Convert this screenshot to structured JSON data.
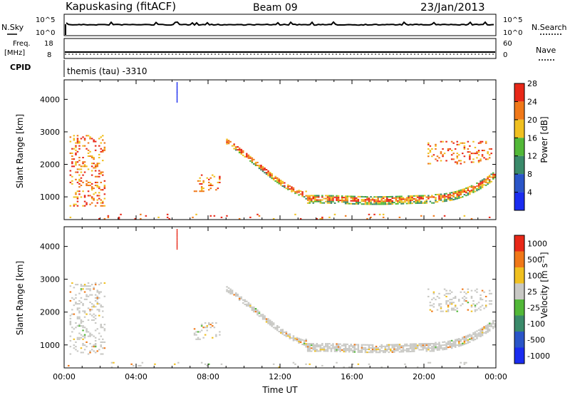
{
  "header": {
    "station": "Kapuskasing (fitACF)",
    "beam": "Beam 09",
    "date": "23/Jan/2013"
  },
  "top_panels": {
    "nsky_label": "N.Sky",
    "nsky_ticks": [
      "10^5",
      "10^0"
    ],
    "nsearch_label": "N.Search",
    "nsearch_ticks": [
      "10^5",
      "10^0"
    ],
    "freq_label": "Freq.",
    "freq_unit": "[MHz]",
    "freq_ticks": [
      "18",
      "8"
    ],
    "nave_label": "Nave",
    "nave_ticks": [
      "60",
      "0"
    ],
    "cpid_label": "CPID",
    "cpid_value": "themis (tau) -3310"
  },
  "chart_data": [
    {
      "type": "heatmap",
      "name": "power",
      "ylabel": "Slant Range [km]",
      "yticks": [
        "1000",
        "2000",
        "3000",
        "4000"
      ],
      "ylim": [
        300,
        4600
      ],
      "xlim": [
        0,
        24
      ],
      "colorbar_label": "Power [dB]",
      "colorbar_ticks": [
        "4",
        "8",
        "12",
        "16",
        "20",
        "24",
        "28"
      ],
      "colorbar_colors": [
        "#1a2cf0",
        "#2a55c8",
        "#3a8a6a",
        "#52b838",
        "#f0c020",
        "#f07818",
        "#e82818"
      ],
      "bands": [
        {
          "x0": 9.0,
          "x1": 13.4,
          "r0": 2700,
          "r1": 1050,
          "note": "descending arc"
        },
        {
          "x0": 13.4,
          "x1": 20.5,
          "r0": 900,
          "r1": 900
        },
        {
          "x0": 20.5,
          "x1": 24.0,
          "r0": 950,
          "r1": 1700
        }
      ]
    },
    {
      "type": "heatmap",
      "name": "velocity",
      "ylabel": "Slant Range [km]",
      "yticks": [
        "1000",
        "2000",
        "3000",
        "4000"
      ],
      "ylim": [
        300,
        4600
      ],
      "xlim": [
        0,
        24
      ],
      "xlabel": "Time UT",
      "xticks": [
        "00:00",
        "04:00",
        "08:00",
        "12:00",
        "16:00",
        "20:00",
        "00:00"
      ],
      "colorbar_label": "Velocity [m s⁻¹]",
      "colorbar_ticks": [
        "1000",
        "500",
        "100",
        "25",
        "-25",
        "-100",
        "-500",
        "-1000"
      ],
      "colorbar_colors": [
        "#1a2cf0",
        "#2a55c8",
        "#3a8a6a",
        "#52b838",
        "#c8c8c4",
        "#f0c020",
        "#f07818",
        "#e82818"
      ]
    }
  ]
}
